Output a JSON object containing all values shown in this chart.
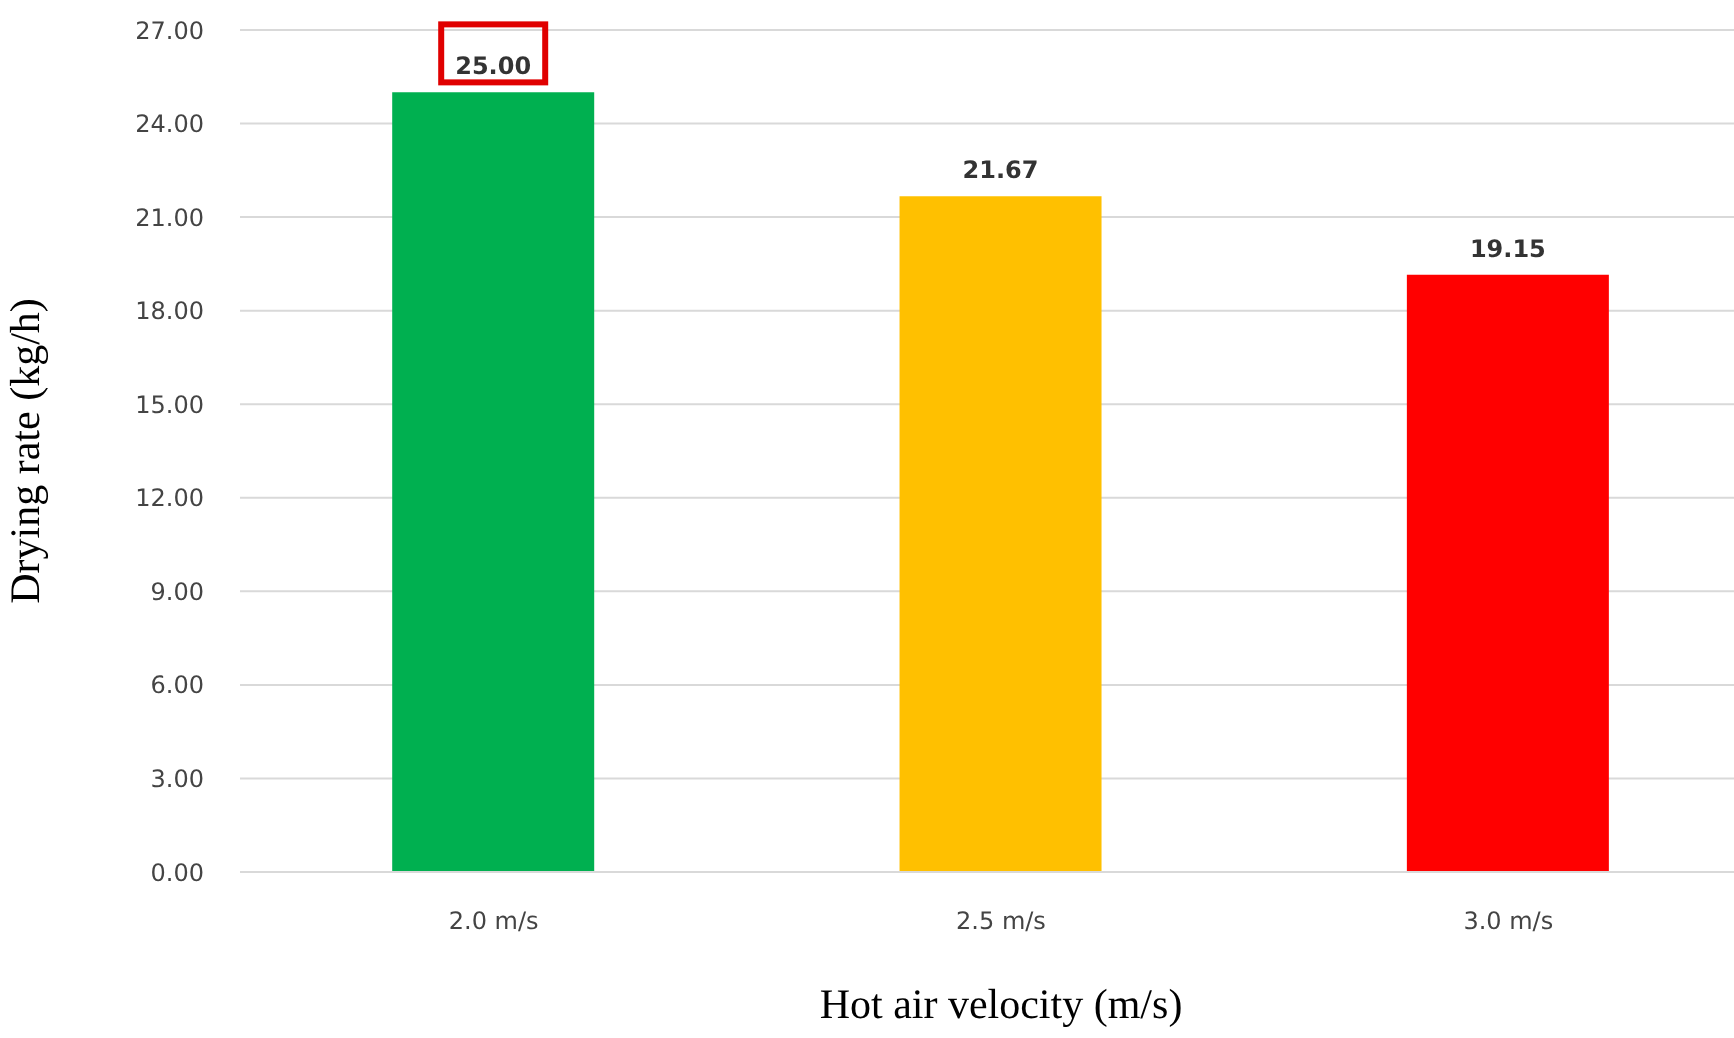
{
  "chart_data": {
    "type": "bar",
    "xlabel": "Hot air velocity (m/s)",
    "ylabel": "Drying rate (kg/h)",
    "categories": [
      "2.0 m/s",
      "2.5 m/s",
      "3.0 m/s"
    ],
    "values": [
      25.0,
      21.67,
      19.15
    ],
    "colors": [
      "#00b050",
      "#ffc000",
      "#ff0000"
    ],
    "value_labels": [
      "25.00",
      "21.67",
      "19.15"
    ],
    "ylim": [
      0,
      27
    ],
    "yticks": [
      {
        "value": 0,
        "label": "0.00"
      },
      {
        "value": 3,
        "label": "3.00"
      },
      {
        "value": 6,
        "label": "6.00"
      },
      {
        "value": 9,
        "label": "9.00"
      },
      {
        "value": 12,
        "label": "12.00"
      },
      {
        "value": 15,
        "label": "15.00"
      },
      {
        "value": 18,
        "label": "18.00"
      },
      {
        "value": 21,
        "label": "21.00"
      },
      {
        "value": 24,
        "label": "24.00"
      },
      {
        "value": 27,
        "label": "27.00"
      }
    ],
    "grid": "y"
  }
}
